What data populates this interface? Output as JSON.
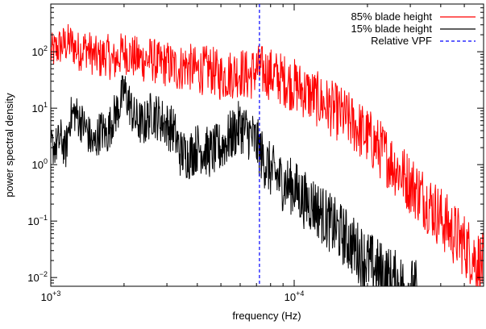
{
  "chart_data": {
    "type": "line",
    "title": "",
    "xlabel": "frequency (Hz)",
    "ylabel": "power spectral density",
    "xscale": "log",
    "yscale": "log",
    "xlim": [
      1000,
      60000
    ],
    "ylim": [
      0.007,
      700
    ],
    "grid": false,
    "legend_position": "top-right",
    "x_ticks": [
      {
        "value": 1000,
        "base": "10",
        "exp": "+3"
      },
      {
        "value": 10000,
        "base": "10",
        "exp": "+4"
      }
    ],
    "y_ticks": [
      {
        "value": 0.01,
        "base": "10",
        "exp": "−2"
      },
      {
        "value": 0.1,
        "base": "10",
        "exp": "−1"
      },
      {
        "value": 1,
        "base": "10",
        "exp": "0"
      },
      {
        "value": 10,
        "base": "10",
        "exp": "1"
      },
      {
        "value": 100,
        "base": "10",
        "exp": "2"
      }
    ],
    "series": [
      {
        "name": "85% blade height",
        "color": "#ff0000",
        "style": "solid",
        "x": [
          1000,
          1100,
          1200,
          1300,
          1400,
          1500,
          1600,
          1700,
          1800,
          1900,
          2000,
          2200,
          2400,
          2600,
          2800,
          3000,
          3300,
          3600,
          4000,
          4500,
          5000,
          5500,
          6000,
          6500,
          7000,
          7500,
          8000,
          9000,
          10000,
          11000,
          12000,
          14000,
          16000,
          18000,
          20000,
          23000,
          26000,
          30000,
          35000,
          40000,
          45000,
          50000,
          55000,
          60000
        ],
        "values": [
          110,
          150,
          170,
          120,
          140,
          100,
          90,
          110,
          75,
          100,
          120,
          95,
          85,
          90,
          70,
          75,
          60,
          70,
          55,
          60,
          45,
          50,
          55,
          45,
          60,
          55,
          50,
          40,
          32,
          25,
          20,
          13,
          9,
          6,
          4,
          2.2,
          1.2,
          0.6,
          0.3,
          0.15,
          0.08,
          0.05,
          0.03,
          0.02
        ]
      },
      {
        "name": "15% blade height",
        "color": "#000000",
        "style": "solid",
        "x": [
          1000,
          1050,
          1100,
          1150,
          1200,
          1250,
          1300,
          1400,
          1500,
          1600,
          1700,
          1800,
          1900,
          2000,
          2100,
          2200,
          2400,
          2600,
          2800,
          3000,
          3200,
          3400,
          3700,
          4000,
          4500,
          5000,
          5500,
          6000,
          6500,
          7000,
          7500,
          8000,
          9000,
          10000,
          11000,
          12000,
          14000,
          16000,
          18000,
          20000,
          22000,
          25000,
          28000,
          32000
        ],
        "values": [
          2.5,
          2.5,
          3.5,
          2.0,
          8.0,
          10.0,
          8.0,
          5.0,
          2.5,
          5.0,
          4.0,
          8.0,
          12.0,
          25.0,
          15.0,
          8.0,
          6.0,
          10.0,
          8.0,
          6.0,
          5.0,
          2.0,
          1.8,
          2.5,
          2.0,
          2.5,
          4.0,
          6.0,
          4.5,
          3.0,
          1.5,
          1.0,
          0.6,
          0.5,
          0.3,
          0.25,
          0.12,
          0.07,
          0.04,
          0.025,
          0.018,
          0.012,
          0.009,
          0.007
        ]
      }
    ],
    "reference_lines": [
      {
        "name": "Relative VPF",
        "x": 7200,
        "color": "#0000ff",
        "style": "dashed"
      }
    ]
  }
}
